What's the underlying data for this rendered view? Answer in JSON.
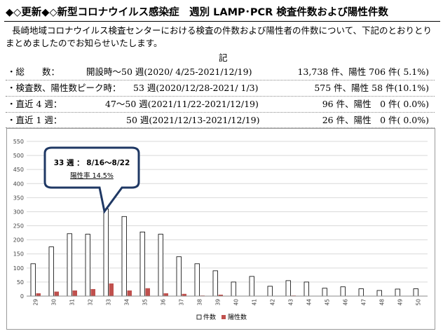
{
  "title": "◆◇更新◆◇新型コロナウイルス感染症　週別 LAMP･PCR 検査件数および陽性件数",
  "intro": "長崎地域コロナウイルス検査センターにおける検査の件数および陽性者の件数について、下記のとおりとりまとめましたのでお知らせいたします。",
  "ki": "記",
  "summary": [
    {
      "label": "・総　　数：",
      "period": "開設時～50 週(2020/ 4/25-2021/12/19)",
      "result": "13,738 件、陽性 706 件( 5.1%)"
    },
    {
      "label": "・検査数、陽性数ピーク時：",
      "period": "53 週(2020/12/28-2021/ 1/3)",
      "result": "575 件、陽性 58 件(10.1%)"
    },
    {
      "label": "・直近 4 週：",
      "period": "47～50 週(2021/11/22-2021/12/19)",
      "result": "96 件、陽性　0 件( 0.0%)"
    },
    {
      "label": "・直近 1 週：",
      "period": "50 週(2021/12/13-2021/12/19)",
      "result": "26 件、陽性　0 件( 0.0%)"
    }
  ],
  "callout": {
    "line1": "33 週 ： 8/16～8/22",
    "line2": "陽性率 14.5%"
  },
  "chart_data": {
    "type": "bar",
    "categories": [
      "29",
      "30",
      "31",
      "32",
      "33",
      "34",
      "35",
      "36",
      "37",
      "38",
      "39",
      "40",
      "41",
      "42",
      "43",
      "44",
      "45",
      "46",
      "47",
      "48",
      "49",
      "50"
    ],
    "series": [
      {
        "name": "件数",
        "values": [
          115,
          175,
          222,
          220,
          310,
          283,
          228,
          220,
          140,
          115,
          90,
          50,
          70,
          35,
          55,
          50,
          28,
          33,
          26,
          20,
          25,
          26
        ]
      },
      {
        "name": "陽性数",
        "values": [
          10,
          16,
          20,
          25,
          45,
          20,
          28,
          10,
          8,
          2,
          5,
          0,
          0,
          0,
          2,
          0,
          0,
          0,
          0,
          0,
          0,
          0
        ]
      }
    ],
    "ylim": [
      0,
      550
    ],
    "yticks": [
      0,
      50,
      100,
      150,
      200,
      250,
      300,
      350,
      400,
      450,
      500,
      550
    ],
    "grid": true,
    "legend_position": "bottom-center",
    "colors": {
      "count": "#ffffff",
      "count_stroke": "#000000",
      "positive": "#c0504d",
      "grid": "#d9d9d9",
      "callout_stroke": "#1f3864"
    }
  }
}
